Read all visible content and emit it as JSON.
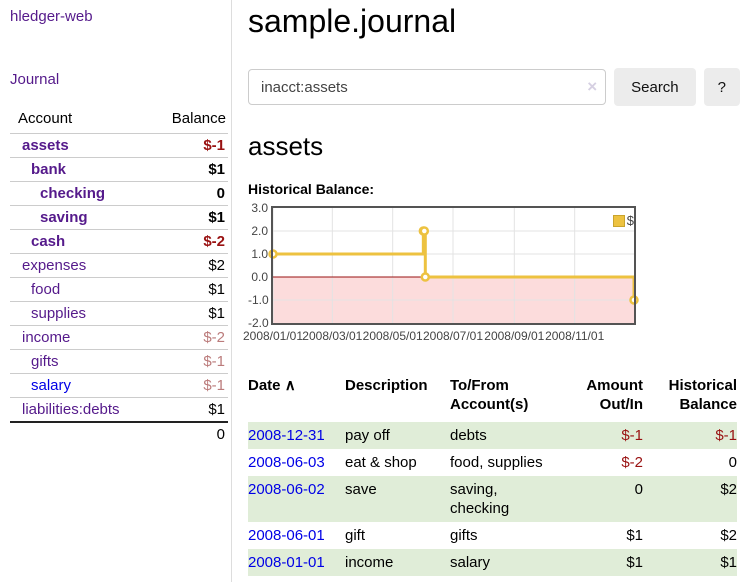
{
  "app": {
    "brand": "hledger-web",
    "nav_journal": "Journal"
  },
  "sidebar": {
    "accounts_header": {
      "account": "Account",
      "balance": "Balance"
    },
    "accounts": [
      {
        "name": "assets",
        "indent": 1,
        "bold": true,
        "balance": "$-1",
        "balance_style": "neg",
        "link_color": "purple"
      },
      {
        "name": "bank",
        "indent": 2,
        "bold": true,
        "balance": "$1",
        "balance_style": "pos",
        "link_color": "purple"
      },
      {
        "name": "checking",
        "indent": 3,
        "bold": true,
        "balance": "0",
        "balance_style": "pos",
        "link_color": "purple"
      },
      {
        "name": "saving",
        "indent": 3,
        "bold": true,
        "balance": "$1",
        "balance_style": "pos",
        "link_color": "purple"
      },
      {
        "name": "cash",
        "indent": 2,
        "bold": true,
        "balance": "$-2",
        "balance_style": "neg",
        "link_color": "purple"
      },
      {
        "name": "expenses",
        "indent": 1,
        "bold": false,
        "balance": "$2",
        "balance_style": "pos",
        "link_color": "purple"
      },
      {
        "name": "food",
        "indent": 2,
        "bold": false,
        "balance": "$1",
        "balance_style": "pos",
        "link_color": "purple"
      },
      {
        "name": "supplies",
        "indent": 2,
        "bold": false,
        "balance": "$1",
        "balance_style": "pos",
        "link_color": "purple"
      },
      {
        "name": "income",
        "indent": 1,
        "bold": false,
        "balance": "$-2",
        "balance_style": "neg-muted",
        "link_color": "purple"
      },
      {
        "name": "gifts",
        "indent": 2,
        "bold": false,
        "balance": "$-1",
        "balance_style": "neg-muted",
        "link_color": "purple"
      },
      {
        "name": "salary",
        "indent": 2,
        "bold": false,
        "balance": "$-1",
        "balance_style": "neg-muted",
        "link_color": "blue"
      },
      {
        "name": "liabilities:debts",
        "indent": 1,
        "bold": false,
        "balance": "$1",
        "balance_style": "pos",
        "link_color": "purple"
      }
    ],
    "total": "0"
  },
  "header": {
    "title": "sample.journal"
  },
  "search": {
    "value": "inacct:assets",
    "clear_icon": "×",
    "button": "Search",
    "help_button": "?"
  },
  "main": {
    "account_title": "assets",
    "chart_label": "Historical Balance:"
  },
  "chart_data": {
    "type": "line",
    "style": "step-after",
    "title": "Historical Balance",
    "series": [
      {
        "name": "$",
        "color": "#EDC240",
        "points": [
          [
            "2008/01/01",
            1
          ],
          [
            "2008/06/01",
            2
          ],
          [
            "2008/06/02",
            2
          ],
          [
            "2008/06/03",
            0
          ],
          [
            "2008/12/31",
            -1
          ]
        ]
      }
    ],
    "x_range": [
      "2008/01/01",
      "2008/12/31"
    ],
    "ylim": [
      -2,
      3
    ],
    "y_ticks": [
      3,
      2,
      1,
      0,
      -1,
      -2
    ],
    "x_ticks": [
      "2008/01/01",
      "2008/03/01",
      "2008/05/01",
      "2008/07/01",
      "2008/09/01",
      "2008/11/01"
    ],
    "grid": true,
    "legend_position": "top-right",
    "negative_region_color": "#fcdcdc",
    "zero_line_color": "#991111",
    "marker": "open-circle"
  },
  "register": {
    "columns": {
      "date": "Date",
      "description": "Description",
      "accounts": "To/From Account(s)",
      "amount": "Amount Out/In",
      "balance": "Historical Balance"
    },
    "sort_icon": "∧",
    "rows": [
      {
        "date": "2008-12-31",
        "description": "pay off",
        "accounts": "debts",
        "amount": "$-1",
        "amount_neg": true,
        "balance": "$-1",
        "balance_neg": true
      },
      {
        "date": "2008-06-03",
        "description": "eat & shop",
        "accounts": "food, supplies",
        "amount": "$-2",
        "amount_neg": true,
        "balance": "0",
        "balance_neg": false
      },
      {
        "date": "2008-06-02",
        "description": "save",
        "accounts": "saving, checking",
        "amount": "0",
        "amount_neg": false,
        "balance": "$2",
        "balance_neg": false
      },
      {
        "date": "2008-06-01",
        "description": "gift",
        "accounts": "gifts",
        "amount": "$1",
        "amount_neg": false,
        "balance": "$2",
        "balance_neg": false
      },
      {
        "date": "2008-01-01",
        "description": "income",
        "accounts": "salary",
        "amount": "$1",
        "amount_neg": false,
        "balance": "$1",
        "balance_neg": false
      }
    ]
  }
}
